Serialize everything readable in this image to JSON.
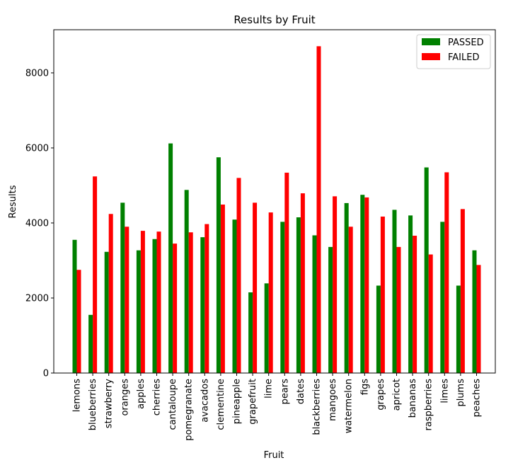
{
  "chart_data": {
    "type": "bar",
    "title": "Results by Fruit",
    "xlabel": "Fruit",
    "ylabel": "Results",
    "ylim": [
      0,
      9150
    ],
    "yticks": [
      0,
      2000,
      4000,
      6000,
      8000
    ],
    "grid": false,
    "legend_position": "top-right",
    "categories": [
      "lemons",
      "blueberries",
      "strawberry",
      "oranges",
      "apples",
      "cherries",
      "cantaloupe",
      "pomegranate",
      "avacados",
      "clementine",
      "pineapple",
      "grapefruit",
      "lime",
      "pears",
      "dates",
      "blackberries",
      "mangoes",
      "watermelon",
      "figs",
      "grapes",
      "apricot",
      "bananas",
      "raspberries",
      "limes",
      "plums",
      "peaches"
    ],
    "series": [
      {
        "name": "PASSED",
        "color": "#008000",
        "values": [
          3550,
          1550,
          3230,
          4540,
          3270,
          3570,
          6120,
          4880,
          3620,
          5750,
          4090,
          2150,
          2390,
          4030,
          4150,
          3670,
          3360,
          4530,
          4750,
          2330,
          4350,
          4200,
          5480,
          4030,
          2330,
          3270
        ]
      },
      {
        "name": "FAILED",
        "color": "#ff0000",
        "values": [
          2750,
          5240,
          4240,
          3900,
          3790,
          3770,
          3450,
          3750,
          3970,
          4490,
          5200,
          4540,
          4280,
          5340,
          4790,
          8710,
          4710,
          3900,
          4680,
          4170,
          3360,
          3660,
          3160,
          5350,
          4370,
          2880
        ]
      }
    ]
  }
}
